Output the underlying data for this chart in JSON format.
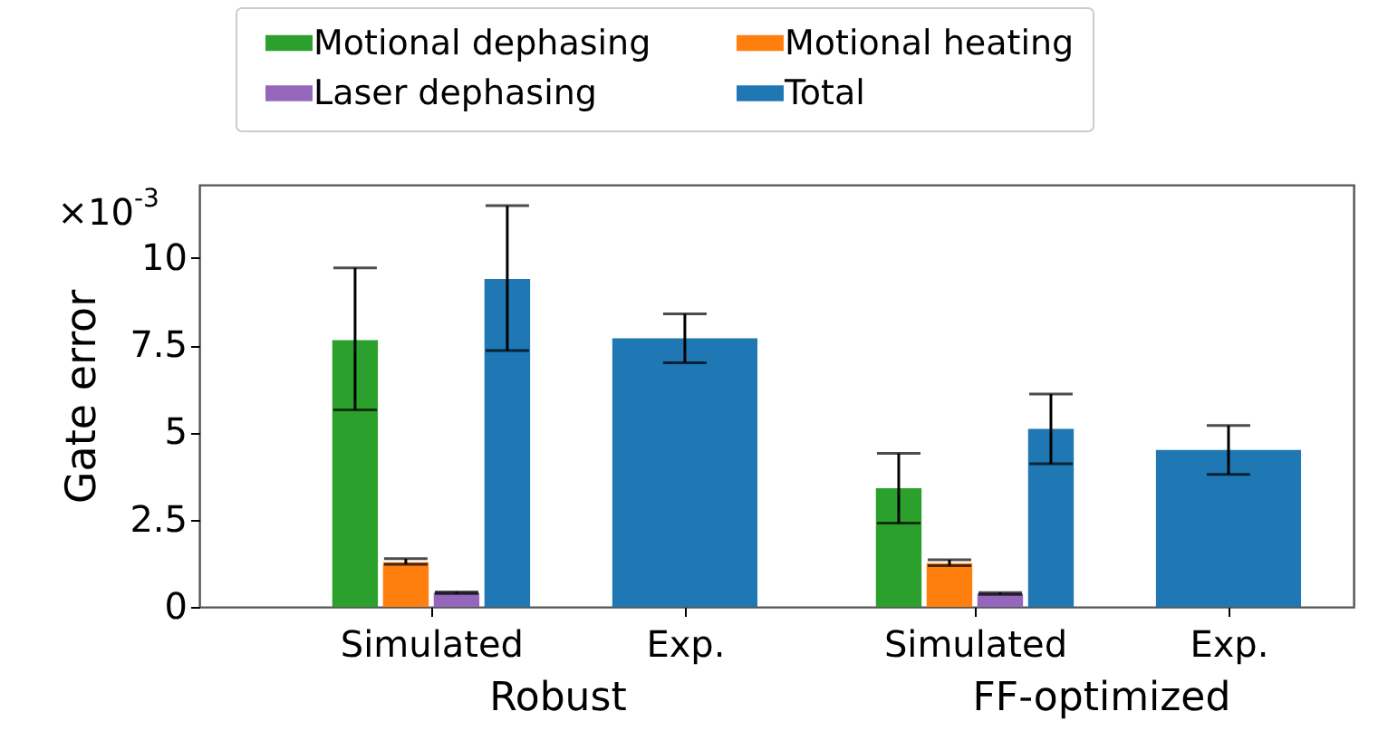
{
  "chart_data": {
    "type": "bar",
    "ylabel": "Gate error",
    "categories": [
      "Simulated",
      "Exp.",
      "Simulated",
      "Exp."
    ],
    "series": [
      {
        "name": "Motional dephasing",
        "color": "#2ca02c",
        "values": [
          7.65,
          null,
          3.4,
          null
        ],
        "errors": [
          [
            5.65,
            9.72
          ],
          null,
          [
            2.4,
            4.4
          ],
          null
        ]
      },
      {
        "name": "Motional heating",
        "color": "#ff7f0e",
        "values": [
          1.28,
          null,
          1.25,
          null
        ],
        "errors": [
          [
            1.22,
            1.38
          ],
          null,
          [
            1.18,
            1.35
          ],
          null
        ]
      },
      {
        "name": "Laser dephasing",
        "color": "#9467bd",
        "values": [
          0.4,
          null,
          0.38,
          null
        ],
        "errors": [
          [
            0.38,
            0.43
          ],
          null,
          [
            0.36,
            0.41
          ],
          null
        ]
      },
      {
        "name": "Total",
        "color": "#1f77b4",
        "values": [
          9.4,
          7.7,
          5.1,
          4.5
        ],
        "errors": [
          [
            7.35,
            11.5
          ],
          [
            7.0,
            8.4
          ],
          [
            4.1,
            6.1
          ],
          [
            3.8,
            5.2
          ]
        ]
      }
    ],
    "ylim": [
      0,
      12.1
    ],
    "yticks": [
      0,
      2.5,
      5,
      7.5,
      10
    ],
    "legend": "top",
    "annotations": [
      "×10$^{-3}$",
      "Robust",
      "FF-optimized"
    ]
  }
}
